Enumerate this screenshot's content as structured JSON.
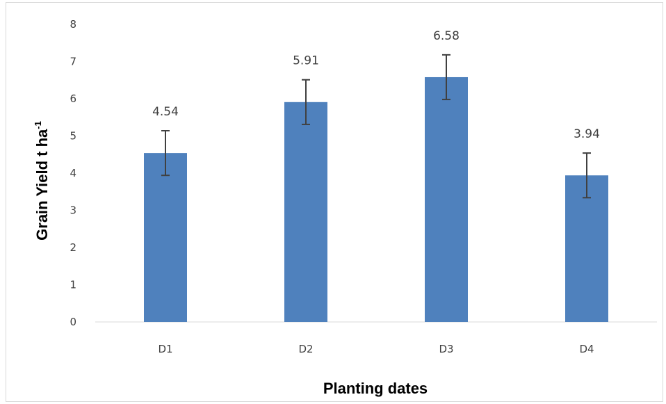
{
  "chart_data": {
    "type": "bar",
    "categories": [
      "D1",
      "D2",
      "D3",
      "D4"
    ],
    "series": [
      {
        "values": [
          4.54,
          5.91,
          6.58,
          3.94
        ],
        "error": [
          0.6,
          0.6,
          0.6,
          0.6
        ],
        "color": "#4f81bd"
      }
    ],
    "data_labels": [
      "4.54",
      "5.91",
      "6.58",
      "3.94"
    ],
    "xlabel": "Planting dates",
    "ylabel": "Grain Yield t ha",
    "ylabel_superscript": "-1",
    "ylim": [
      0,
      8
    ],
    "yticks": [
      "0",
      "1",
      "2",
      "3",
      "4",
      "5",
      "6",
      "7",
      "8"
    ],
    "grid": false,
    "legend": "none",
    "axis_color": "#d9d9d9",
    "error_bar_color": "#404040"
  }
}
